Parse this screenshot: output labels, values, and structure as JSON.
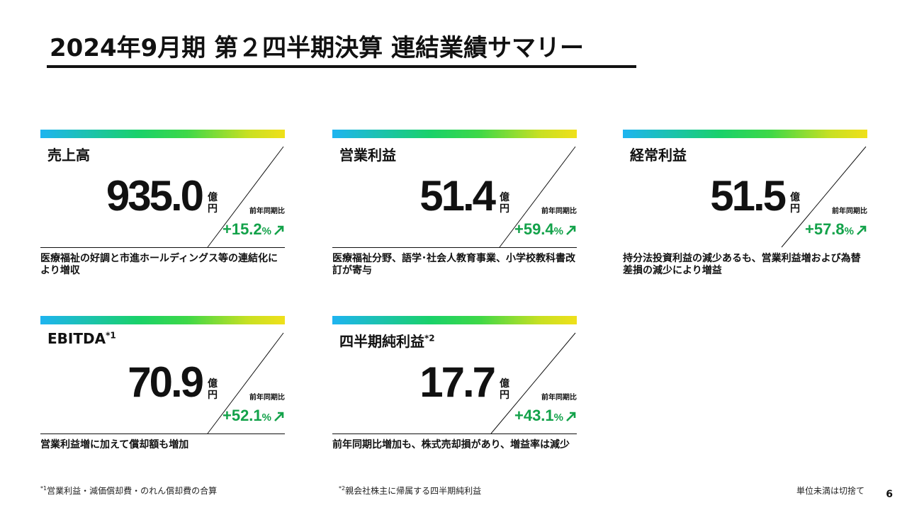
{
  "title": "2024年9月期 第２四半期決算 連結業績サマリー",
  "unit_label": "億\n円",
  "yoy_label": "前年同期比",
  "cards": [
    {
      "label": "売上高",
      "sup": "",
      "value": "935.0",
      "change": "+15.2",
      "pct": "%",
      "desc": "医療福祉の好調と市進ホールディングス等の連結化により増収"
    },
    {
      "label": "営業利益",
      "sup": "",
      "value": "51.4",
      "change": "+59.4",
      "pct": "%",
      "desc": "医療福祉分野、語学･社会人教育事業、小学校教科書改訂が寄与"
    },
    {
      "label": "経常利益",
      "sup": "",
      "value": "51.5",
      "change": "+57.8",
      "pct": "%",
      "desc": "持分法投資利益の減少あるも、営業利益増および為替差損の減少により増益"
    },
    {
      "label": "EBITDA",
      "sup": "*1",
      "value": "70.9",
      "change": "+52.1",
      "pct": "%",
      "desc": "営業利益増に加えて償却額も増加"
    },
    {
      "label": "四半期純利益",
      "sup": "*2",
      "value": "17.7",
      "change": "+43.1",
      "pct": "%",
      "desc": "前年同期比増加も、株式売却損があり、増益率は減少"
    }
  ],
  "footnotes": [
    {
      "mark": "*1",
      "text": "営業利益・減価償却費・のれん償却費の合算"
    },
    {
      "mark": "*2",
      "text": "親会社株主に帰属する四半期純利益"
    }
  ],
  "unit_note": "単位未満は切捨て",
  "page_number": "6",
  "colors": {
    "accent_green": "#13a24a",
    "text": "#111111"
  }
}
